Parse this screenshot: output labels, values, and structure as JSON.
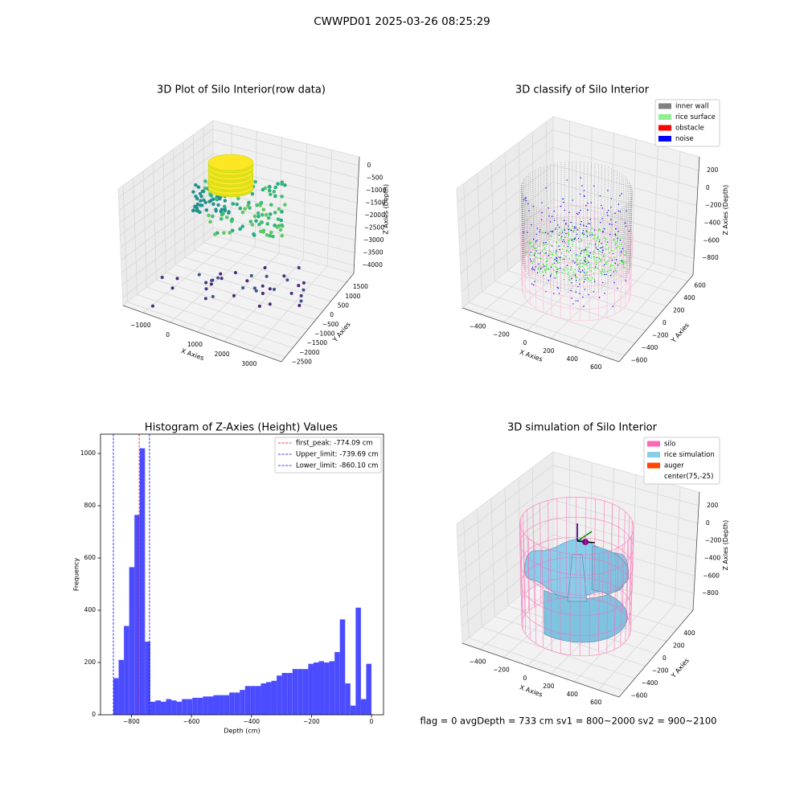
{
  "suptitle": "CWWPD01 2025-03-26 08:25:29",
  "status_text": "flag = 0     avgDepth = 733 cm  sv1 = 800~2000  sv2 = 900~2100",
  "chart_data": [
    {
      "type": "scatter3d",
      "title": "3D Plot of Silo Interior(row data)",
      "xlabel": "X Axies",
      "ylabel": "Y Axies",
      "zlabel": "Z Axies (Depth)",
      "xlim": [
        -1740,
        4100
      ],
      "ylim": [
        -2740,
        1980
      ],
      "zlim": [
        -4320,
        350
      ],
      "xticks": [
        {
          "value": -1000,
          "label": "−1000"
        },
        0,
        1000,
        2000,
        3000
      ],
      "yticks": [
        {
          "value": -2500,
          "label": "−2500"
        },
        {
          "value": -2000,
          "label": "−2000"
        },
        {
          "value": -1500,
          "label": "−1500"
        },
        {
          "value": -1000,
          "label": "−1000"
        },
        {
          "value": -500,
          "label": "−500"
        },
        0,
        500,
        1000,
        1500
      ],
      "zticks": [
        0,
        {
          "value": -500,
          "label": "−500"
        },
        {
          "value": -1000,
          "label": "−1000"
        },
        {
          "value": -1500,
          "label": "−1500"
        },
        {
          "value": -2000,
          "label": "−2000"
        },
        {
          "value": -2500,
          "label": "−2500"
        },
        {
          "value": -3000,
          "label": "−3000"
        },
        {
          "value": -3500,
          "label": "−3500"
        },
        {
          "value": -4000,
          "label": "−4000"
        }
      ]
    },
    {
      "type": "classify3d",
      "title": "3D classify of Silo Interior",
      "xlabel": "X Axies",
      "ylabel": "Y Axies",
      "zlabel": "Z Axies (Depth)",
      "xlim": [
        -550,
        775
      ],
      "ylim": [
        -700,
        700
      ],
      "zlim": [
        -990,
        355
      ],
      "xticks": [
        {
          "value": -400,
          "label": "−400"
        },
        {
          "value": -200,
          "label": "−200"
        },
        0,
        200,
        400,
        600
      ],
      "yticks": [
        {
          "value": -600,
          "label": "−600"
        },
        {
          "value": -400,
          "label": "−400"
        },
        {
          "value": -200,
          "label": "−200"
        },
        0,
        200,
        400,
        600
      ],
      "zticks": [
        200,
        0,
        {
          "value": -200,
          "label": "−200"
        },
        {
          "value": -400,
          "label": "−400"
        },
        {
          "value": -600,
          "label": "−600"
        },
        {
          "value": -800,
          "label": "−800"
        }
      ],
      "legend": [
        {
          "name": "inner wall",
          "color": "#808080"
        },
        {
          "name": "rice surface",
          "color": "#90ee90"
        },
        {
          "name": "obstacle",
          "color": "#ff0000"
        },
        {
          "name": "noise",
          "color": "#0000ff"
        }
      ]
    },
    {
      "type": "histogram",
      "title": "Histogram of Z-Axies (Height) Values",
      "xlabel": "Depth (cm)",
      "ylabel": "Frequency",
      "color": "#4c4cff",
      "xlim": [
        -903,
        40
      ],
      "ylim": [
        0,
        1074
      ],
      "xticks": [
        {
          "value": -800,
          "label": "−800"
        },
        {
          "value": -600,
          "label": "−600"
        },
        {
          "value": -400,
          "label": "−400"
        },
        {
          "value": -200,
          "label": "−200"
        },
        0
      ],
      "yticks": [
        0,
        200,
        400,
        600,
        800,
        1000
      ],
      "bins": [
        -860.1,
        -842.55,
        -825,
        -807.45,
        -789.9,
        -772.35,
        -754.8,
        -737.25,
        -719.7,
        -702.15,
        -684.6,
        -667.05,
        -649.5,
        -631.95,
        -614.4,
        -596.85,
        -579.3,
        -561.75,
        -544.2,
        -526.65,
        -509.1,
        -491.55,
        -474,
        -456.45,
        -438.9,
        -421.35,
        -403.8,
        -386.25,
        -368.7,
        -351.15,
        -333.6,
        -316.05,
        -298.5,
        -280.95,
        -263.4,
        -245.85,
        -228.3,
        -210.75,
        -193.2,
        -175.65,
        -158.1,
        -140.55,
        -123,
        -105.45,
        -87.9,
        -70.35,
        -52.8,
        -35.25,
        -17.7,
        -0.15
      ],
      "counts": [
        140,
        210,
        340,
        565,
        765,
        1020,
        280,
        50,
        55,
        50,
        60,
        55,
        50,
        60,
        60,
        65,
        65,
        70,
        70,
        75,
        75,
        75,
        85,
        85,
        95,
        110,
        110,
        110,
        120,
        125,
        130,
        150,
        160,
        160,
        175,
        175,
        175,
        195,
        200,
        205,
        200,
        205,
        240,
        365,
        120,
        35,
        410,
        60,
        195
      ],
      "vlines": [
        {
          "name": "first_peak: -774.09 cm",
          "value": -774.09,
          "color": "#ff0000"
        },
        {
          "name": "Upper_limit: -739.69 cm",
          "value": -739.69,
          "color": "#0000ff"
        },
        {
          "name": "Lower_limit: -860.10 cm",
          "value": -860.1,
          "color": "#0000ff"
        }
      ]
    },
    {
      "type": "surface3d",
      "title": "3D simulation of Silo Interior",
      "xlabel": "X Axies",
      "ylabel": "Y Axies",
      "zlabel": "Z Axies (Depth)",
      "xlim": [
        -550,
        775
      ],
      "ylim": [
        -700,
        700
      ],
      "zlim": [
        -990,
        355
      ],
      "xticks": [
        {
          "value": -400,
          "label": "−400"
        },
        {
          "value": -200,
          "label": "−200"
        },
        0,
        200,
        400,
        600
      ],
      "yticks": [
        {
          "value": -600,
          "label": "−600"
        },
        {
          "value": -400,
          "label": "−400"
        },
        {
          "value": -200,
          "label": "−200"
        },
        0,
        200,
        400
      ],
      "zticks": [
        200,
        0,
        {
          "value": -200,
          "label": "−200"
        },
        {
          "value": -400,
          "label": "−400"
        },
        {
          "value": -600,
          "label": "−600"
        },
        {
          "value": -800,
          "label": "−800"
        }
      ],
      "legend": [
        {
          "name": "silo",
          "color": "#ff69b4"
        },
        {
          "name": "rice simulation",
          "color": "#87ceeb"
        },
        {
          "name": "auger",
          "color": "#ff4500"
        },
        {
          "name": "center(75,-25)"
        }
      ]
    }
  ]
}
